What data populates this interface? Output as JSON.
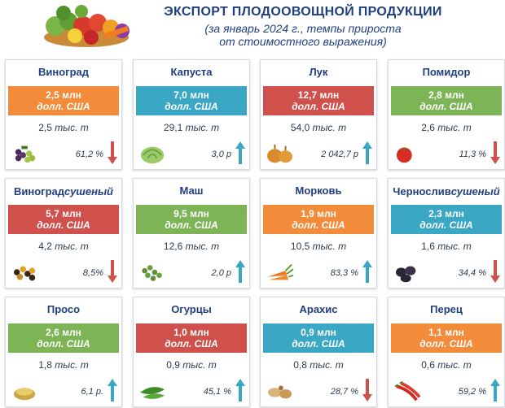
{
  "header": {
    "title": "ЭКСПОРТ ПЛОДООВОЩНОЙ ПРОДУКЦИИ",
    "subtitle_line1": "(за январь 2024 г.,  темпы прироста",
    "subtitle_line2": "от стоимостного выражения)"
  },
  "colors": {
    "orange": "#f28c3a",
    "teal": "#3aa8c4",
    "red": "#d0504c",
    "green": "#7db556",
    "up_arrow": "#3aa8c4",
    "down_arrow": "#d0504c"
  },
  "cards": [
    {
      "name": "Виноград",
      "name2": "",
      "value": "2,5 млн",
      "unit": "долл. США",
      "volume_num": "2,5",
      "volume_unit": "тыс. т",
      "rate": "61,2 %",
      "trend": "down",
      "color": "orange",
      "icon": "grapes-icon"
    },
    {
      "name": "Капуста",
      "name2": "",
      "value": "7,0 млн",
      "unit": "долл. США",
      "volume_num": "29,1",
      "volume_unit": "тыс. т",
      "rate": "3,0 р",
      "trend": "up",
      "color": "teal",
      "icon": "cabbage-icon"
    },
    {
      "name": "Лук",
      "name2": "",
      "value": "12,7 млн",
      "unit": "долл. США",
      "volume_num": "54,0",
      "volume_unit": "тыс. т",
      "rate": "2 042,7 р",
      "trend": "up",
      "color": "red",
      "icon": "onion-icon"
    },
    {
      "name": "Помидор",
      "name2": "",
      "value": "2,8 млн",
      "unit": "долл. США",
      "volume_num": "2,6",
      "volume_unit": "тыс. т",
      "rate": "11,3 %",
      "trend": "down",
      "color": "green",
      "icon": "tomato-icon"
    },
    {
      "name": "Виноград",
      "name2": "сушеный",
      "value": "5,7 млн",
      "unit": "долл. США",
      "volume_num": "4,2",
      "volume_unit": "тыс. т",
      "rate": "8,5%",
      "trend": "down",
      "color": "red",
      "icon": "raisins-icon"
    },
    {
      "name": "Маш",
      "name2": "",
      "value": "9,5 млн",
      "unit": "долл. США",
      "volume_num": "12,6",
      "volume_unit": "тыс. т",
      "rate": "2,0 р",
      "trend": "up",
      "color": "green",
      "icon": "mung-bean-icon"
    },
    {
      "name": "Морковь",
      "name2": "",
      "value": "1,9 млн",
      "unit": "долл. США",
      "volume_num": "10,5",
      "volume_unit": "тыс. т",
      "rate": "83,3 %",
      "trend": "up",
      "color": "orange",
      "icon": "carrot-icon"
    },
    {
      "name": "Чернослив",
      "name2": "сушеный",
      "value": "2,3 млн",
      "unit": "долл. США",
      "volume_num": "1,6",
      "volume_unit": "тыс. т",
      "rate": "34,4 %",
      "trend": "down",
      "color": "teal",
      "icon": "prunes-icon"
    },
    {
      "name": "Просо",
      "name2": "",
      "value": "2,6 млн",
      "unit": "долл. США",
      "volume_num": "1,8",
      "volume_unit": "тыс. т",
      "rate": "6,1 р.",
      "trend": "up",
      "color": "green",
      "icon": "millet-icon"
    },
    {
      "name": "Огурцы",
      "name2": "",
      "value": "1,0 млн",
      "unit": "долл. США",
      "volume_num": "0,9",
      "volume_unit": "тыс. т",
      "rate": "45,1 %",
      "trend": "up",
      "color": "red",
      "icon": "cucumber-icon"
    },
    {
      "name": "Арахис",
      "name2": "",
      "value": "0,9 млн",
      "unit": "долл. США",
      "volume_num": "0,8",
      "volume_unit": "тыс. т",
      "rate": "28,7 %",
      "trend": "down",
      "color": "teal",
      "icon": "peanut-icon"
    },
    {
      "name": "Перец",
      "name2": "",
      "value": "1,1 млн",
      "unit": "долл. США",
      "volume_num": "0,6",
      "volume_unit": "тыс. т",
      "rate": "59,2 %",
      "trend": "up",
      "color": "orange",
      "icon": "pepper-icon"
    }
  ]
}
